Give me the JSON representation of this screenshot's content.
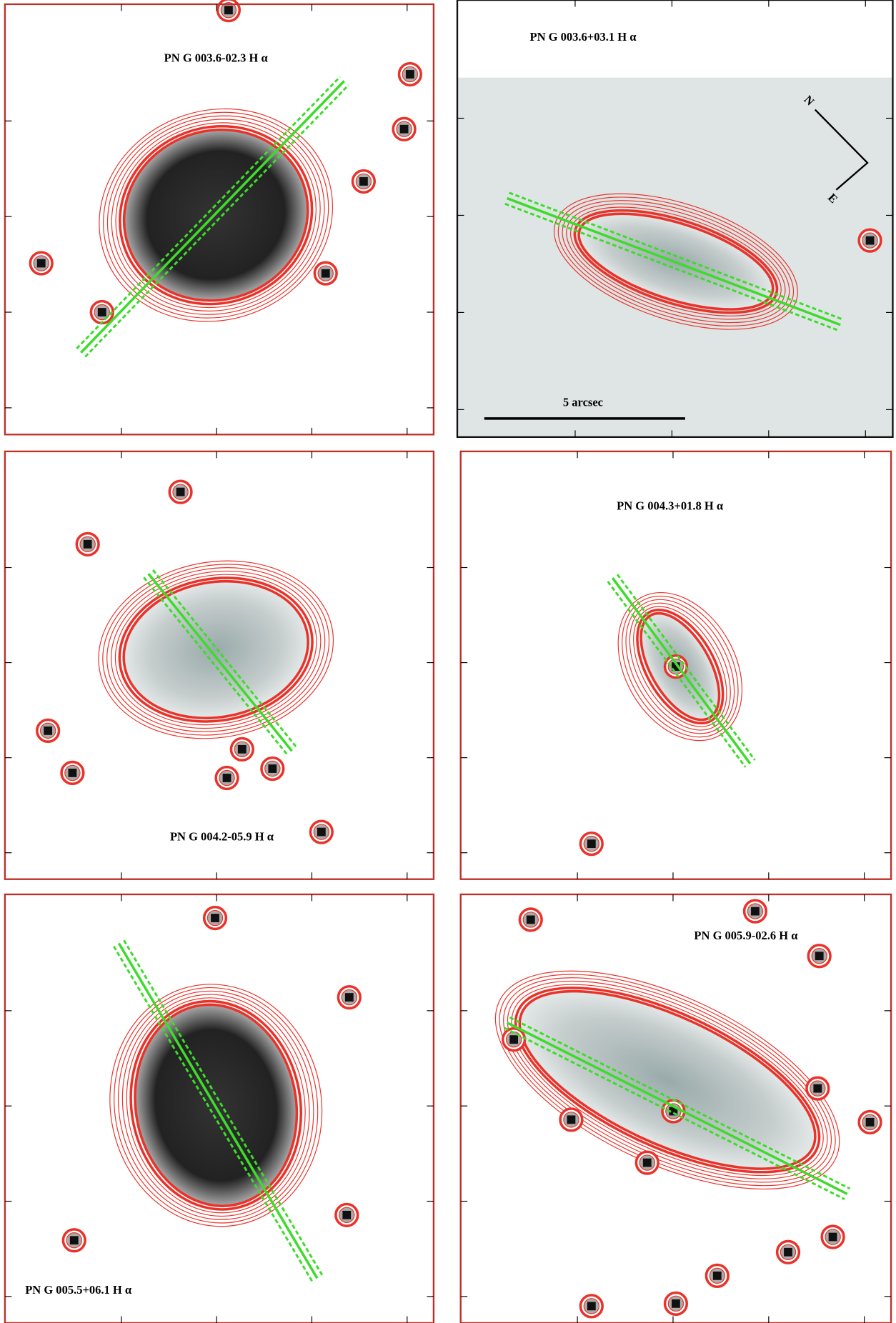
{
  "panels": [
    {
      "label": "PN G 003.6-02.3  H α"
    },
    {
      "label": "PN G 003.6+03.1 H α"
    },
    {
      "label": "PN G 004.2-05.9 H α"
    },
    {
      "label": "PN G 004.3+01.8 H α"
    },
    {
      "label": "PN G 005.5+06.1 H α"
    },
    {
      "label": "PN G 005.9-02.6 H α"
    }
  ],
  "scale_bar": "5 arcsec",
  "compass": {
    "north": "N",
    "east": "E"
  }
}
